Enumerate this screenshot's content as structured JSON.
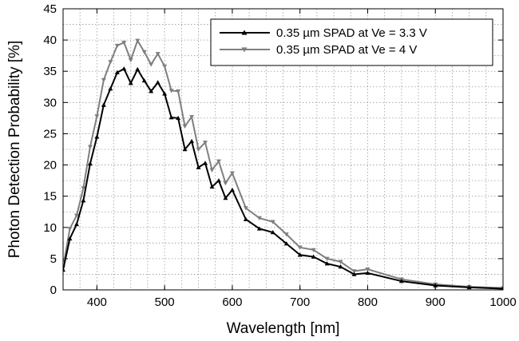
{
  "chart_data": {
    "type": "line",
    "title": "",
    "xlabel": "Wavelength [nm]",
    "ylabel": "Photon Detection Probability [%]",
    "xlim": [
      350,
      1000
    ],
    "ylim": [
      0,
      45
    ],
    "xticks": [
      400,
      500,
      600,
      700,
      800,
      900,
      1000
    ],
    "yticks": [
      0,
      5,
      10,
      15,
      20,
      25,
      30,
      35,
      40,
      45
    ],
    "grid": true,
    "legend_position": "top-right",
    "series": [
      {
        "name": "0.35 µm SPAD at Ve = 3.3 V",
        "color": "#000000",
        "marker": "triangle-up",
        "x": [
          350,
          360,
          370,
          380,
          390,
          400,
          410,
          420,
          430,
          440,
          450,
          460,
          470,
          480,
          490,
          500,
          510,
          520,
          530,
          540,
          550,
          560,
          570,
          580,
          590,
          600,
          620,
          640,
          660,
          680,
          700,
          720,
          740,
          760,
          780,
          800,
          850,
          900,
          950,
          1000
        ],
        "y": [
          3.2,
          8.2,
          10.5,
          14.3,
          20.2,
          24.5,
          29.6,
          32.2,
          34.8,
          35.4,
          33.1,
          35.3,
          33.5,
          31.8,
          33.2,
          31.4,
          27.6,
          27.5,
          22.5,
          23.8,
          19.6,
          20.3,
          16.5,
          17.5,
          14.7,
          16.0,
          11.3,
          9.8,
          9.2,
          7.4,
          5.6,
          5.3,
          4.2,
          3.7,
          2.5,
          2.7,
          1.4,
          0.7,
          0.4,
          0.2
        ]
      },
      {
        "name": "0.35 µm SPAD at Ve = 4 V",
        "color": "#7f7f7f",
        "marker": "triangle-down",
        "x": [
          350,
          360,
          370,
          380,
          390,
          400,
          410,
          420,
          430,
          440,
          450,
          460,
          470,
          480,
          490,
          500,
          510,
          520,
          530,
          540,
          550,
          560,
          570,
          580,
          590,
          600,
          620,
          640,
          660,
          680,
          700,
          720,
          740,
          760,
          780,
          800,
          850,
          900,
          950,
          1000
        ],
        "y": [
          3.6,
          9.8,
          11.9,
          16.3,
          22.9,
          27.8,
          33.6,
          36.5,
          39.1,
          39.6,
          36.8,
          39.9,
          38.1,
          36.1,
          37.8,
          35.8,
          31.9,
          31.8,
          26.2,
          27.7,
          22.5,
          23.6,
          19.2,
          20.6,
          17.1,
          18.7,
          13.1,
          11.5,
          10.9,
          8.9,
          6.8,
          6.4,
          5.0,
          4.5,
          3.0,
          3.3,
          1.7,
          0.9,
          0.5,
          0.3
        ]
      }
    ]
  }
}
